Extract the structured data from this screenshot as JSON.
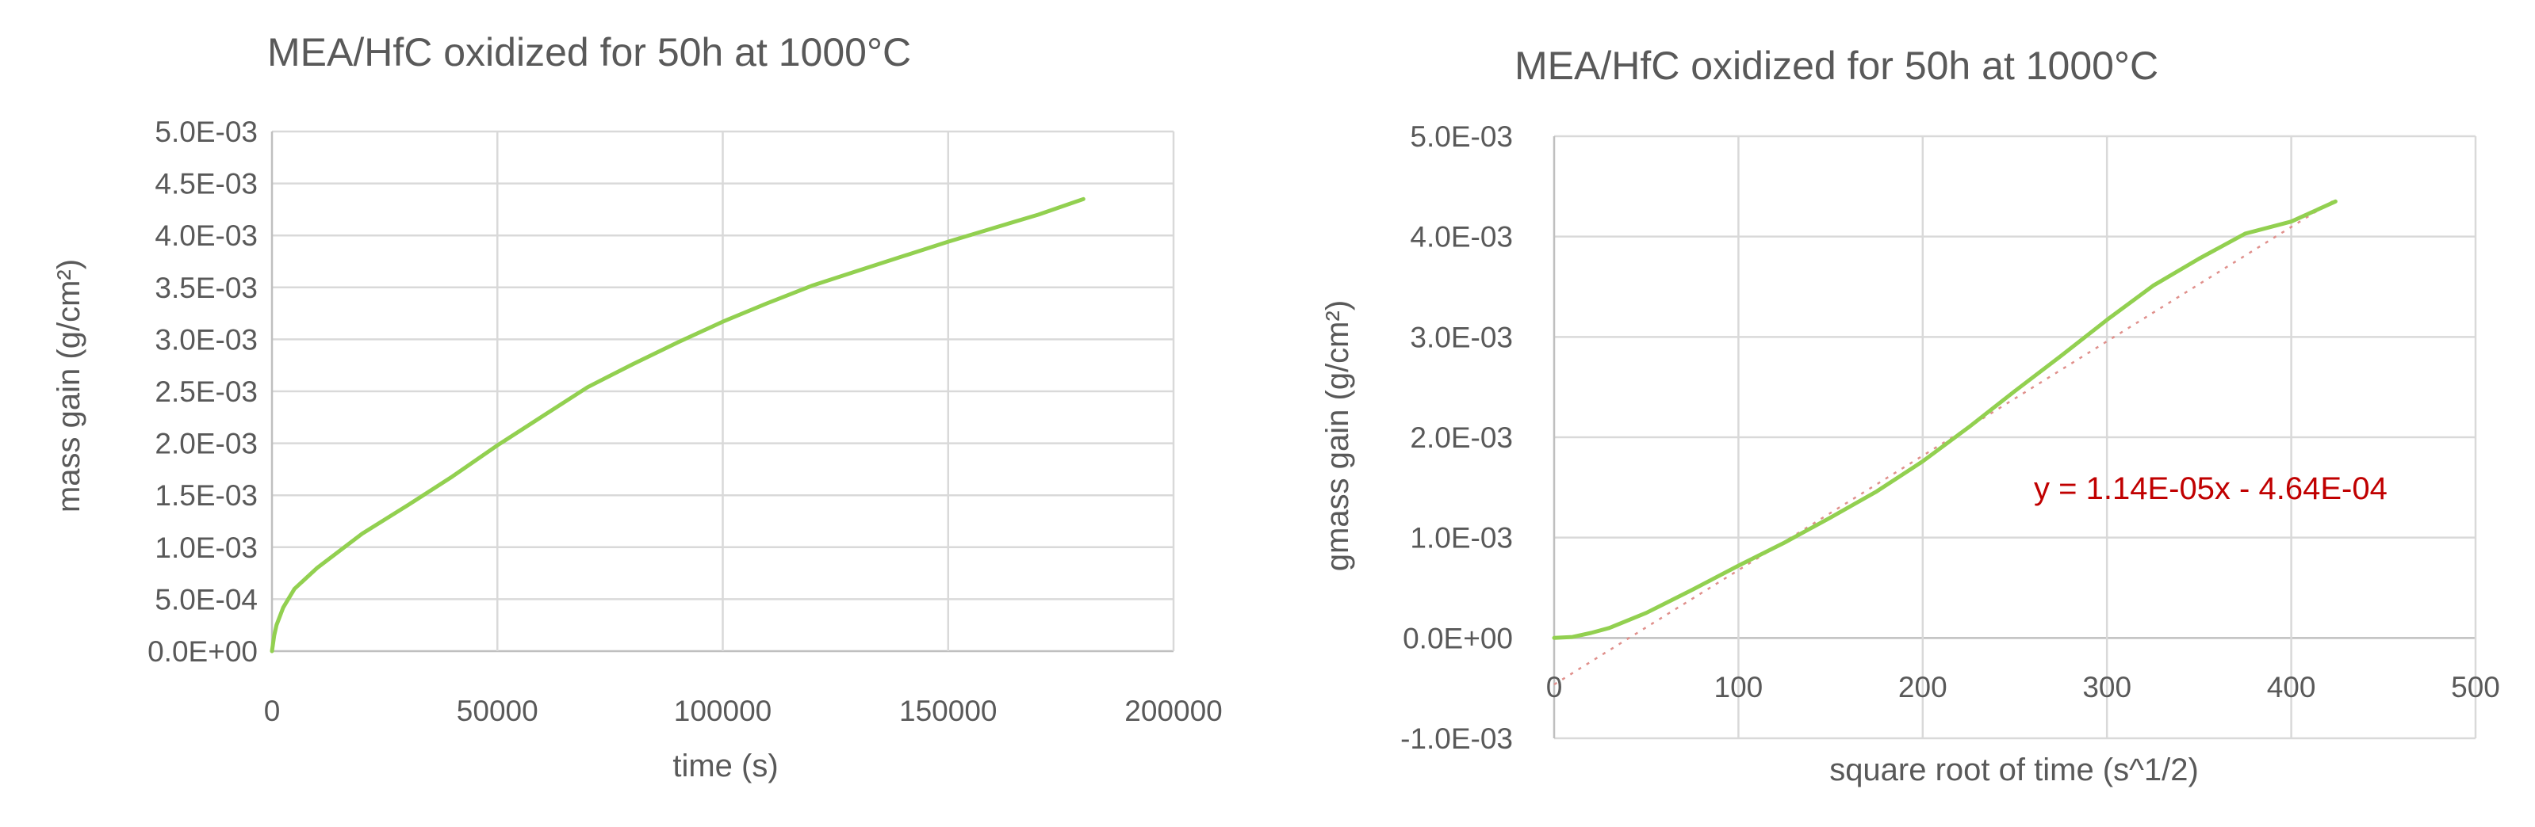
{
  "chart_data": [
    {
      "type": "line",
      "title": "MEA/HfC oxidized for 50h at 1000°C",
      "xlabel": "time (s)",
      "ylabel": "mass gain (g/cm²)",
      "xlim": [
        0,
        200000
      ],
      "ylim": [
        0,
        0.005
      ],
      "xticks": [
        0,
        50000,
        100000,
        150000,
        200000
      ],
      "xtick_labels": [
        "0",
        "50000",
        "100000",
        "150000",
        "200000"
      ],
      "yticks": [
        0,
        0.0005,
        0.001,
        0.0015,
        0.002,
        0.0025,
        0.003,
        0.0035,
        0.004,
        0.0045,
        0.005
      ],
      "ytick_labels": [
        "0.0E+00",
        "5.0E-04",
        "1.0E-03",
        "1.5E-03",
        "2.0E-03",
        "2.5E-03",
        "3.0E-03",
        "3.5E-03",
        "4.0E-03",
        "4.5E-03",
        "5.0E-03"
      ],
      "grid": true,
      "legend": "none",
      "color": "#92d050",
      "series": [
        {
          "x": [
            0,
            500,
            1000,
            2500,
            5000,
            10000,
            20000,
            30000,
            40000,
            50000,
            60000,
            70000,
            80000,
            90000,
            100000,
            110000,
            120000,
            130000,
            140000,
            150000,
            160000,
            170000,
            180000
          ],
          "y": [
            0.0,
            0.00015,
            0.00025,
            0.00042,
            0.0006,
            0.0008,
            0.00113,
            0.0014,
            0.00168,
            0.00198,
            0.00226,
            0.00254,
            0.00276,
            0.00297,
            0.00317,
            0.00335,
            0.00352,
            0.00366,
            0.0038,
            0.00394,
            0.00407,
            0.0042,
            0.00435
          ]
        }
      ]
    },
    {
      "type": "line",
      "title": "MEA/HfC oxidized for 50h at 1000°C",
      "xlabel": "square root of time (s^1/2)",
      "ylabel": "gmass gain (g/cm²)",
      "xlim": [
        0,
        500
      ],
      "ylim": [
        -0.001,
        0.005
      ],
      "xticks": [
        0,
        100,
        200,
        300,
        400,
        500
      ],
      "xtick_labels": [
        "0",
        "100",
        "200",
        "300",
        "400",
        "500"
      ],
      "yticks": [
        -0.001,
        0.0,
        0.001,
        0.002,
        0.003,
        0.004,
        0.005
      ],
      "ytick_labels": [
        "-1.0E-03",
        "0.0E+00",
        "1.0E-03",
        "2.0E-03",
        "3.0E-03",
        "4.0E-03",
        "5.0E-03"
      ],
      "grid": true,
      "legend": "none",
      "color": "#92d050",
      "trendline_color": "#c00000",
      "series": [
        {
          "x": [
            0,
            10,
            20,
            30,
            50,
            75,
            100,
            125,
            150,
            175,
            200,
            225,
            250,
            275,
            300,
            325,
            350,
            375,
            400,
            424
          ],
          "y": [
            0.0,
            1e-05,
            5e-05,
            0.0001,
            0.00025,
            0.00048,
            0.00072,
            0.00095,
            0.0012,
            0.00146,
            0.00176,
            0.0021,
            0.00246,
            0.00281,
            0.00317,
            0.00351,
            0.00378,
            0.00403,
            0.00415,
            0.00435
          ]
        }
      ],
      "trendline": {
        "slope": 1.14e-05,
        "intercept": -0.000464,
        "x_range": [
          0,
          424
        ],
        "equation_label": "y = 1.14E-05x - 4.64E-04"
      }
    }
  ]
}
